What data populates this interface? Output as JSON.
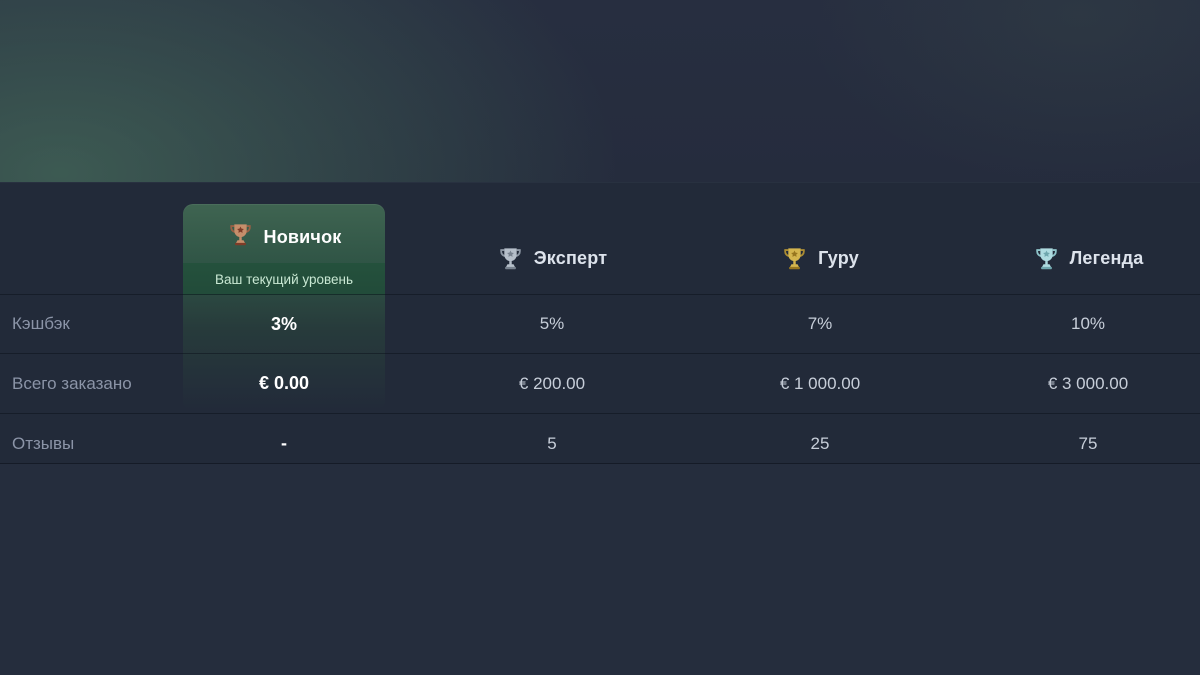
{
  "colors": {
    "page_background": "#252d3d",
    "table_background": "#222a39",
    "card_green_top": "#3f6451",
    "badge_background": "#1c4f36",
    "badge_text": "#c9e8d3",
    "header_text": "#dde3ec",
    "row_label_text": "#8b94a7",
    "value_text": "#c7ced9",
    "card_value_text": "#ffffff"
  },
  "table": {
    "row_labels": [
      "Кэшбэк",
      "Всего заказано",
      "Отзывы"
    ],
    "columns": [
      {
        "name": "Новичок",
        "is_current": true,
        "badge": "Ваш текущий уровень",
        "trophy": {
          "name": "bronze-trophy-icon",
          "body": "#c68e6b",
          "star": "#7e3c28",
          "accent": "#996045"
        },
        "values": [
          "3%",
          "€ 0.00",
          "-"
        ]
      },
      {
        "name": "Эксперт",
        "is_current": false,
        "trophy": {
          "name": "silver-trophy-icon",
          "body": "#b6bfca",
          "star": "#78828f",
          "accent": "#8d97a4"
        },
        "values": [
          "5%",
          "€ 200.00",
          "5"
        ]
      },
      {
        "name": "Гуру",
        "is_current": false,
        "trophy": {
          "name": "gold-trophy-icon",
          "body": "#d4b54e",
          "star": "#97761f",
          "accent": "#ab8c33"
        },
        "values": [
          "7%",
          "€ 1 000.00",
          "25"
        ]
      },
      {
        "name": "Легенда",
        "is_current": false,
        "trophy": {
          "name": "platinum-trophy-icon",
          "body": "#aedbe0",
          "star": "#6fa7ae",
          "accent": "#8ec3c9"
        },
        "values": [
          "10%",
          "€ 3 000.00",
          "75"
        ]
      }
    ]
  }
}
